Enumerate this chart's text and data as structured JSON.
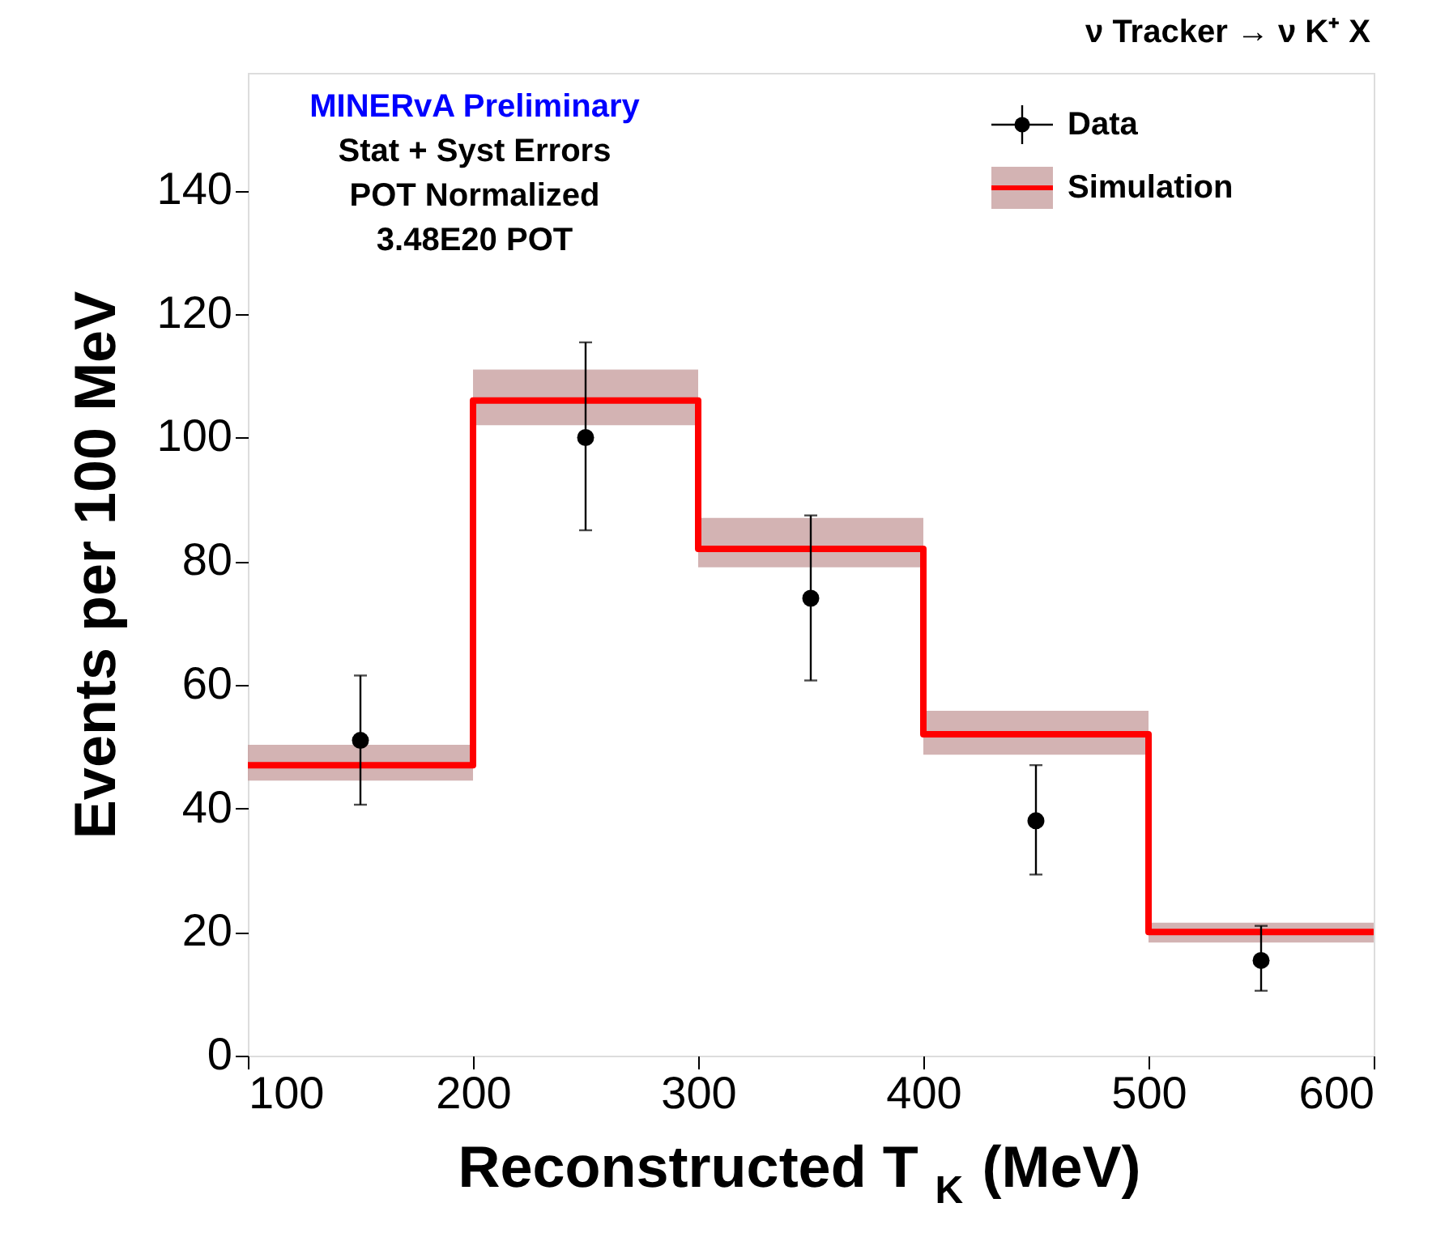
{
  "chart_data": {
    "type": "step",
    "title": "ν Tracker  → ν K⁺ X",
    "xlabel": "Reconstructed T$_{K}$ (MeV)",
    "ylabel": "Events per 100 MeV",
    "annotations": [
      "MINERvA Preliminary",
      "Stat + Syst Errors",
      "POT Normalized",
      "3.48E20 POT"
    ],
    "xlim": [
      100,
      600
    ],
    "xticks": [
      100,
      200,
      300,
      400,
      500,
      600
    ],
    "ylim": [
      0,
      159
    ],
    "yticks": [
      0,
      20,
      40,
      60,
      80,
      100,
      120,
      140
    ],
    "grid": false,
    "legend": "top right",
    "series": [
      {
        "name": "Simulation",
        "color": "#ff0000",
        "x": [
          100,
          200,
          300,
          400,
          500,
          600
        ],
        "values": [
          47,
          106,
          82,
          52,
          20,
          20
        ],
        "lower": [
          44.5,
          102,
          79,
          48.7,
          18.3,
          18.3
        ],
        "upper": [
          50.3,
          111,
          87,
          55.8,
          21.5,
          21.5
        ]
      },
      {
        "name": "Data",
        "type": "scatter",
        "color": "#000000",
        "marker": "circle",
        "x": [
          150,
          250,
          350,
          450,
          550
        ],
        "values": [
          51,
          100,
          74,
          38,
          15.4
        ],
        "errors": [
          [
            40.6,
            61.5
          ],
          [
            85,
            115.4
          ],
          [
            60.7,
            87.4
          ],
          [
            29.3,
            47
          ],
          [
            10.5,
            21
          ]
        ]
      }
    ]
  }
}
